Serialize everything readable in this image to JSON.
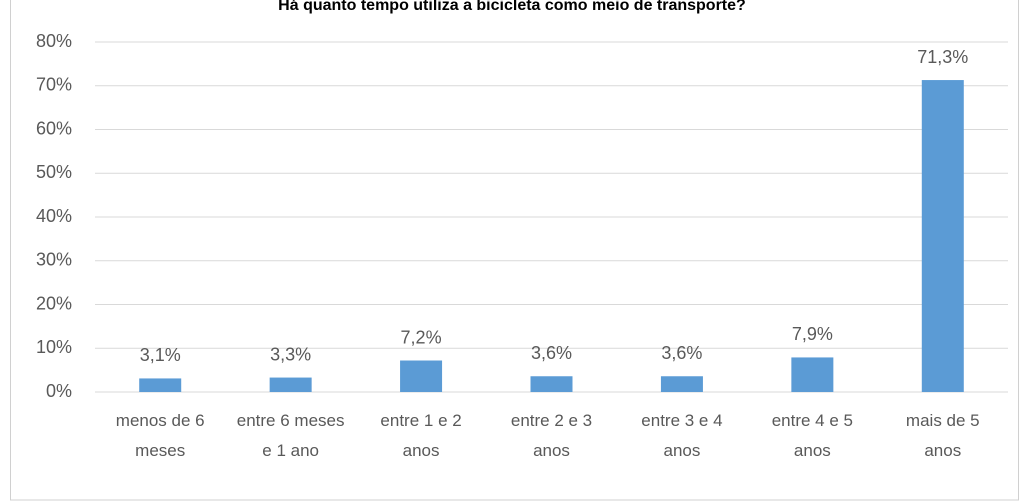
{
  "chart_data": {
    "type": "bar",
    "title": "Há quanto tempo utiliza a bicicleta como meio de transporte?",
    "categories": [
      "menos de 6 meses",
      "entre 6 meses e 1 ano",
      "entre 1 e 2 anos",
      "entre 2 e 3 anos",
      "entre 3 e 4 anos",
      "entre 4 e 5 anos",
      "mais de 5 anos"
    ],
    "values": [
      3.1,
      3.3,
      7.2,
      3.6,
      3.6,
      7.9,
      71.3
    ],
    "value_labels": [
      "3,1%",
      "3,3%",
      "7,2%",
      "3,6%",
      "3,6%",
      "7,9%",
      "71,3%"
    ],
    "color": "#5b9bd5",
    "ylim": [
      0,
      80
    ],
    "yticks": [
      {
        "value": 0,
        "label": "0%"
      },
      {
        "value": 10,
        "label": "10%"
      },
      {
        "value": 20,
        "label": "20%"
      },
      {
        "value": 30,
        "label": "30%"
      },
      {
        "value": 40,
        "label": "40%"
      },
      {
        "value": 50,
        "label": "50%"
      },
      {
        "value": 60,
        "label": "60%"
      },
      {
        "value": 70,
        "label": "70%"
      },
      {
        "value": 80,
        "label": "80%"
      }
    ],
    "grid": true
  }
}
